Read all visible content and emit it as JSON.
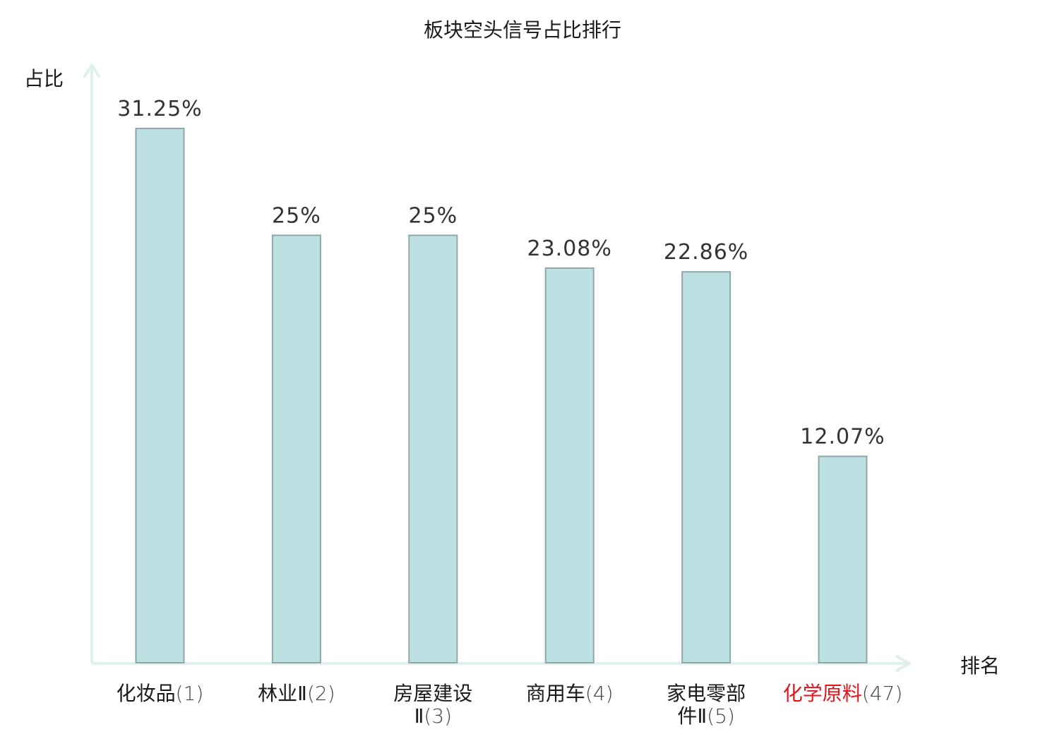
{
  "chart_data": {
    "type": "bar",
    "title": "板块空头信号占比排行",
    "ylabel": "占比",
    "xlabel": "排名",
    "ylim": [
      0,
      35
    ],
    "grid": false,
    "legend": "none",
    "categories": [
      {
        "name": "化妆品",
        "rank": "(1)",
        "highlight": false
      },
      {
        "name": "林业Ⅱ",
        "rank": "(2)",
        "highlight": false
      },
      {
        "name": "房屋建设Ⅱ",
        "rank": "(3)",
        "highlight": false
      },
      {
        "name": "商用车",
        "rank": "(4)",
        "highlight": false
      },
      {
        "name": "家电零部件Ⅱ",
        "rank": "(5)",
        "highlight": false
      },
      {
        "name": "化学原料",
        "rank": "(47)",
        "highlight": true
      }
    ],
    "values": [
      31.25,
      25,
      25,
      23.08,
      22.86,
      12.07
    ],
    "value_labels": [
      "31.25%",
      "25%",
      "25%",
      "23.08%",
      "22.86%",
      "12.07%"
    ],
    "colors": {
      "bar_fill": "#bde0e3",
      "bar_stroke": "#8fa8aa",
      "axis": "#dff0ee",
      "highlight_text": "#e8141b",
      "text": "#1a1a1a"
    }
  }
}
